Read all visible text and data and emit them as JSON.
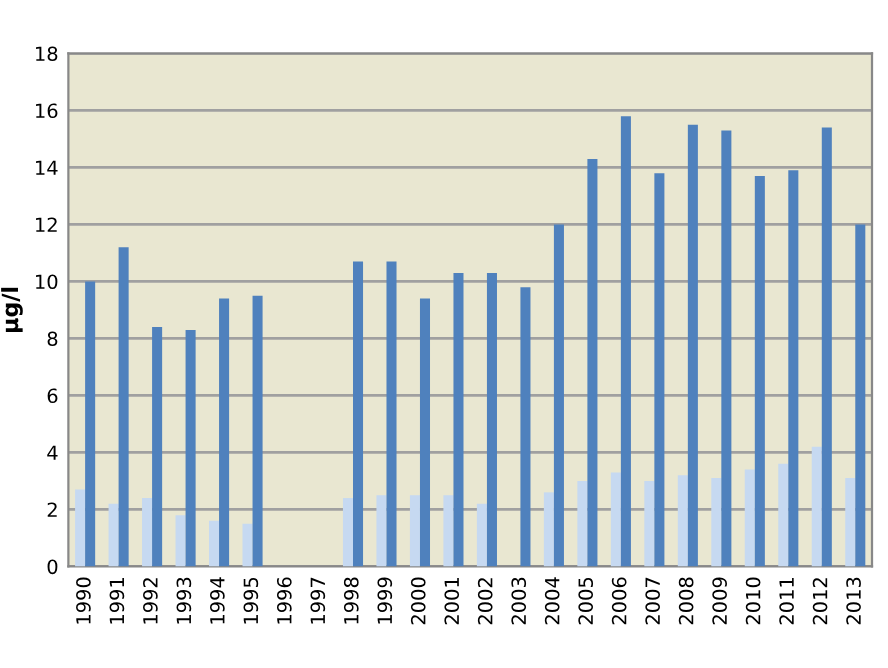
{
  "chart_data": {
    "type": "bar",
    "ylabel": "µg/l",
    "categories": [
      "1990",
      "1991",
      "1992",
      "1993",
      "1994",
      "1995",
      "1996",
      "1997",
      "1998",
      "1999",
      "2000",
      "2001",
      "2002",
      "2003",
      "2004",
      "2005",
      "2006",
      "2007",
      "2008",
      "2009",
      "2010",
      "2011",
      "2012",
      "2013"
    ],
    "series": [
      {
        "color": "#c6d9f1",
        "values": [
          2.7,
          2.2,
          2.4,
          1.8,
          1.6,
          1.5,
          null,
          null,
          2.4,
          2.5,
          2.5,
          2.5,
          2.2,
          null,
          2.6,
          3.0,
          3.3,
          3.0,
          3.2,
          3.1,
          3.4,
          3.6,
          4.2,
          3.1
        ]
      },
      {
        "color": "#4f81bd",
        "values": [
          10.0,
          11.2,
          8.4,
          8.3,
          9.4,
          9.5,
          null,
          null,
          10.7,
          10.7,
          9.4,
          10.3,
          10.3,
          9.8,
          12.0,
          14.3,
          15.8,
          13.8,
          15.5,
          15.3,
          13.7,
          13.9,
          15.4,
          12.0
        ]
      }
    ],
    "ylim": [
      0,
      18
    ],
    "yticks": [
      0,
      2,
      4,
      6,
      8,
      10,
      12,
      14,
      16,
      18
    ],
    "grid": "y"
  }
}
